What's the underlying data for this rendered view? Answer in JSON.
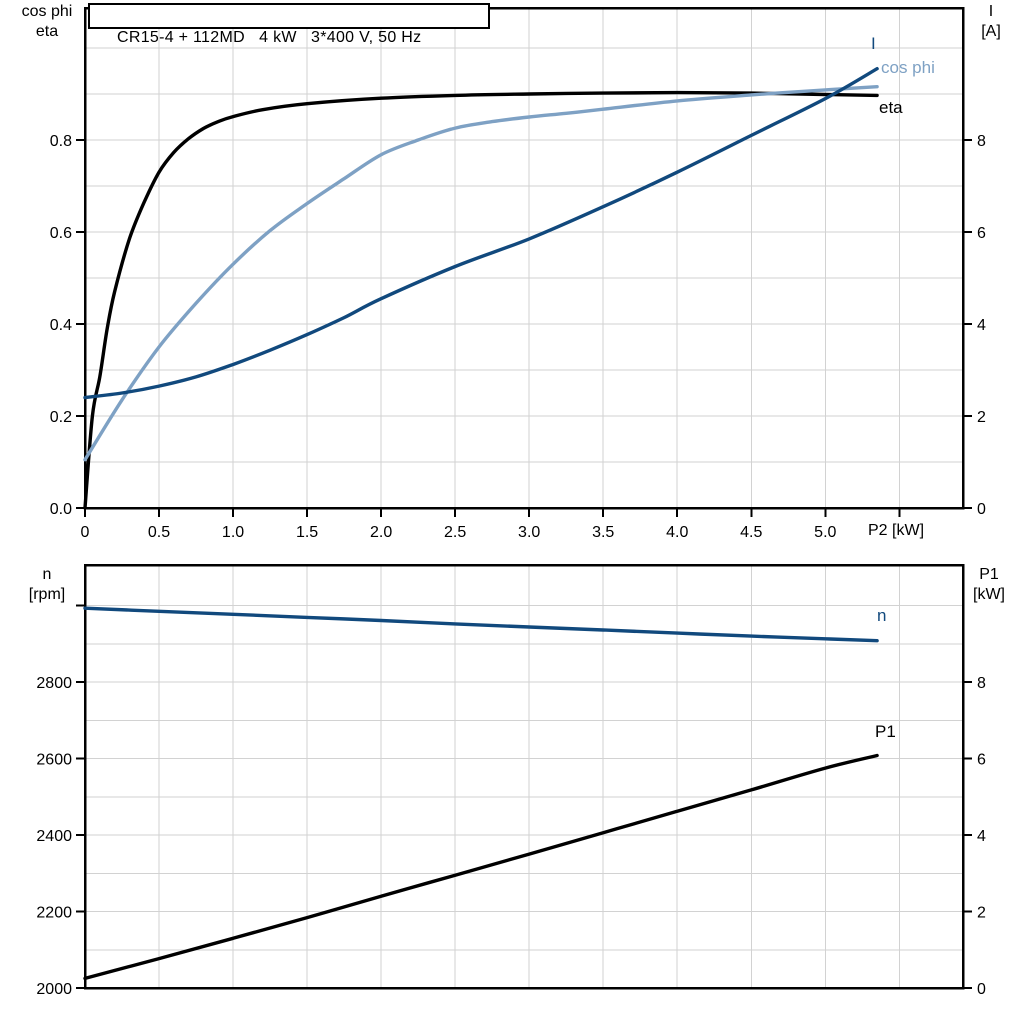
{
  "colors": {
    "black": "#000000",
    "dark_blue": "#11497d",
    "light_blue": "#7ea1c4",
    "grid": "#d2d2d2",
    "frame": "#000000",
    "background": "#ffffff"
  },
  "chart_data": [
    {
      "type": "line",
      "title": "CR15-4 + 112MD   4 kW   3*400 V, 50 Hz",
      "x_axis": {
        "label": "P2 [kW]",
        "min": 0,
        "max": 5.93,
        "grid_step": 0.5,
        "grid_max": 5.5,
        "tick_values": [
          0,
          0.5,
          1.0,
          1.5,
          2.0,
          2.5,
          3.0,
          3.5,
          4.0,
          4.5,
          5.0,
          5.5
        ],
        "tick_labels": [
          "0",
          "0.5",
          "1.0",
          "1.5",
          "2.0",
          "2.5",
          "3.0",
          "3.5",
          "4.0",
          "4.5",
          "5.0",
          ""
        ]
      },
      "left_axis": {
        "label_lines": [
          "cos phi",
          "eta"
        ],
        "min": 0,
        "max": 1.087,
        "grid_step": 0.1,
        "grid_max": 1.0,
        "tick_values": [
          0,
          0.2,
          0.4,
          0.6,
          0.8
        ],
        "tick_labels": [
          "0.0",
          "0.2",
          "0.4",
          "0.6",
          "0.8"
        ]
      },
      "right_axis": {
        "label_lines": [
          "I",
          "[A]"
        ],
        "min": 0,
        "max": 10.87,
        "tick_values": [
          0,
          2,
          4,
          6,
          8
        ],
        "tick_labels": [
          "0",
          "2",
          "4",
          "6",
          "8"
        ]
      },
      "series": [
        {
          "name": "eta",
          "label": "eta",
          "axis": "left",
          "color": "#000000",
          "points": [
            [
              0,
              0
            ],
            [
              0.05,
              0.2
            ],
            [
              0.1,
              0.285
            ],
            [
              0.15,
              0.39
            ],
            [
              0.2,
              0.47
            ],
            [
              0.3,
              0.585
            ],
            [
              0.4,
              0.665
            ],
            [
              0.5,
              0.73
            ],
            [
              0.6,
              0.773
            ],
            [
              0.7,
              0.803
            ],
            [
              0.8,
              0.825
            ],
            [
              0.9,
              0.84
            ],
            [
              1.0,
              0.851
            ],
            [
              1.2,
              0.866
            ],
            [
              1.5,
              0.879
            ],
            [
              2.0,
              0.891
            ],
            [
              2.5,
              0.897
            ],
            [
              3.0,
              0.9
            ],
            [
              3.5,
              0.902
            ],
            [
              4.0,
              0.903
            ],
            [
              4.5,
              0.902
            ],
            [
              5.0,
              0.899
            ],
            [
              5.35,
              0.897
            ]
          ]
        },
        {
          "name": "cos phi",
          "label": "cos phi",
          "axis": "left",
          "color": "#7ea1c4",
          "points": [
            [
              0,
              0.105
            ],
            [
              0.25,
              0.235
            ],
            [
              0.5,
              0.35
            ],
            [
              0.75,
              0.445
            ],
            [
              1.0,
              0.53
            ],
            [
              1.25,
              0.603
            ],
            [
              1.5,
              0.662
            ],
            [
              1.75,
              0.716
            ],
            [
              2.0,
              0.768
            ],
            [
              2.25,
              0.8
            ],
            [
              2.5,
              0.826
            ],
            [
              2.75,
              0.84
            ],
            [
              3.0,
              0.85
            ],
            [
              3.25,
              0.858
            ],
            [
              3.5,
              0.867
            ],
            [
              4.0,
              0.885
            ],
            [
              4.5,
              0.898
            ],
            [
              5.0,
              0.909
            ],
            [
              5.35,
              0.916
            ]
          ]
        },
        {
          "name": "I",
          "label": "I",
          "axis": "right",
          "color": "#11497d",
          "points": [
            [
              0,
              2.4
            ],
            [
              0.25,
              2.5
            ],
            [
              0.5,
              2.65
            ],
            [
              0.75,
              2.85
            ],
            [
              1.0,
              3.12
            ],
            [
              1.25,
              3.43
            ],
            [
              1.5,
              3.77
            ],
            [
              1.75,
              4.14
            ],
            [
              2.0,
              4.55
            ],
            [
              2.5,
              5.25
            ],
            [
              3.0,
              5.85
            ],
            [
              3.5,
              6.55
            ],
            [
              4.0,
              7.3
            ],
            [
              4.5,
              8.1
            ],
            [
              5.0,
              8.9
            ],
            [
              5.35,
              9.55
            ]
          ]
        }
      ]
    },
    {
      "type": "line",
      "title": "",
      "x_axis": {
        "label": "",
        "min": 0,
        "max": 5.93,
        "grid_step": 0.5,
        "grid_max": 5.5,
        "tick_values": [],
        "tick_labels": []
      },
      "left_axis": {
        "label_lines": [
          "n",
          "[rpm]"
        ],
        "min": 2000,
        "max": 3106,
        "grid_step": 100,
        "grid_max": 3000,
        "tick_values": [
          2000,
          2200,
          2400,
          2600,
          2800,
          3000
        ],
        "tick_labels": [
          "2000",
          "2200",
          "2400",
          "2600",
          "2800",
          ""
        ]
      },
      "right_axis": {
        "label_lines": [
          "P1",
          "[kW]"
        ],
        "min": 0,
        "max": 11.06,
        "tick_values": [
          0,
          2,
          4,
          6,
          8
        ],
        "tick_labels": [
          "0",
          "2",
          "4",
          "6",
          "8"
        ]
      },
      "series": [
        {
          "name": "n",
          "label": "n",
          "axis": "left",
          "color": "#11497d",
          "points": [
            [
              0,
              2993
            ],
            [
              0.5,
              2985
            ],
            [
              1.0,
              2977
            ],
            [
              1.5,
              2969
            ],
            [
              2.0,
              2961
            ],
            [
              2.5,
              2952
            ],
            [
              3.0,
              2944
            ],
            [
              3.5,
              2936
            ],
            [
              4.0,
              2928
            ],
            [
              4.5,
              2920
            ],
            [
              5.0,
              2913
            ],
            [
              5.35,
              2908
            ]
          ]
        },
        {
          "name": "P1",
          "label": "P1",
          "axis": "right",
          "color": "#000000",
          "points": [
            [
              0,
              0.25
            ],
            [
              0.5,
              0.77
            ],
            [
              1.0,
              1.3
            ],
            [
              1.5,
              1.84
            ],
            [
              2.0,
              2.4
            ],
            [
              2.5,
              2.95
            ],
            [
              3.0,
              3.5
            ],
            [
              3.5,
              4.06
            ],
            [
              4.0,
              4.62
            ],
            [
              4.5,
              5.18
            ],
            [
              5.0,
              5.75
            ],
            [
              5.35,
              6.08
            ]
          ]
        }
      ]
    }
  ]
}
